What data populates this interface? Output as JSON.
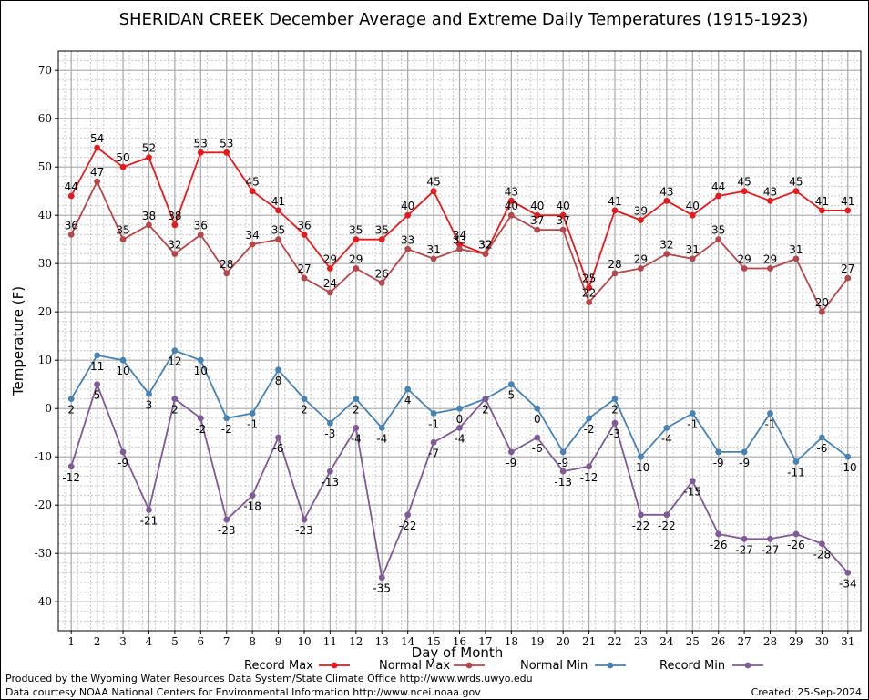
{
  "chart_data": {
    "type": "line",
    "title": "SHERIDAN CREEK December Average and Extreme Daily Temperatures (1915-1923)",
    "xlabel": "Day of Month",
    "ylabel": "Temperature (F)",
    "ylim": [
      -46,
      74
    ],
    "yticks": [
      -40,
      -30,
      -20,
      -10,
      0,
      10,
      20,
      30,
      40,
      50,
      60,
      70
    ],
    "x": [
      1,
      2,
      3,
      4,
      5,
      6,
      7,
      8,
      9,
      10,
      11,
      12,
      13,
      14,
      15,
      16,
      17,
      18,
      19,
      20,
      21,
      22,
      23,
      24,
      25,
      26,
      27,
      28,
      29,
      30,
      31
    ],
    "grid": true,
    "legend_position": "bottom",
    "series": [
      {
        "name": "Record Max",
        "color": "#e41a1c",
        "values": [
          44,
          54,
          50,
          52,
          38,
          53,
          53,
          45,
          41,
          36,
          29,
          35,
          35,
          40,
          45,
          34,
          32,
          43,
          40,
          40,
          25,
          41,
          39,
          43,
          40,
          44,
          45,
          43,
          45,
          41,
          41
        ]
      },
      {
        "name": "Normal Max",
        "color": "#b5464b",
        "values": [
          36,
          47,
          35,
          38,
          32,
          36,
          28,
          34,
          35,
          27,
          24,
          29,
          26,
          33,
          31,
          33,
          32,
          40,
          37,
          37,
          22,
          28,
          29,
          32,
          31,
          35,
          29,
          29,
          31,
          20,
          27
        ]
      },
      {
        "name": "Normal Min",
        "color": "#4682b4",
        "values": [
          2,
          11,
          10,
          3,
          12,
          10,
          -2,
          -1,
          8,
          2,
          -3,
          2,
          -4,
          4,
          -1,
          0,
          2,
          5,
          0,
          -9,
          -2,
          2,
          -10,
          -4,
          -1,
          -9,
          -9,
          -1,
          -11,
          -6,
          -10
        ]
      },
      {
        "name": "Record Min",
        "color": "#7e5a96",
        "values": [
          -12,
          5,
          -9,
          -21,
          2,
          -2,
          -23,
          -18,
          -6,
          -23,
          -13,
          -4,
          -35,
          -22,
          -7,
          -4,
          2,
          -9,
          -6,
          -13,
          -12,
          -3,
          -22,
          -22,
          -15,
          -26,
          -27,
          -27,
          -26,
          -28,
          -34
        ]
      }
    ]
  },
  "footer": {
    "produced_by": "Produced by the Wyoming Water Resources Data System/State Climate Office http://www.wrds.uwyo.edu",
    "courtesy": "Data courtesy NOAA National Centers for Environmental Information http://www.ncei.noaa.gov",
    "created": "Created:  25-Sep-2024"
  }
}
